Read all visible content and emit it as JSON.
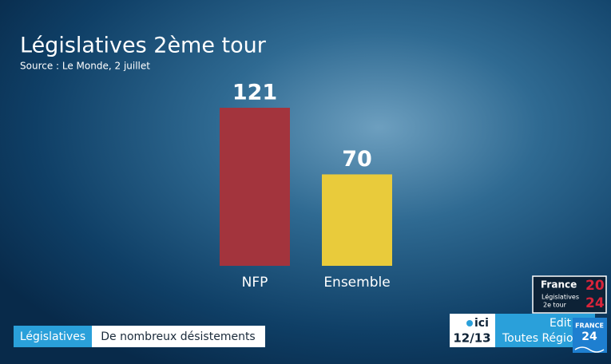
{
  "chart_data": {
    "type": "bar",
    "title": "Législatives 2ème tour",
    "subtitle": "Source : Le Monde, 2 juillet",
    "categories": [
      "NFP",
      "Ensemble"
    ],
    "values": [
      121,
      70
    ],
    "colors": [
      "#a3343d",
      "#e9cb3b"
    ]
  },
  "banner": {
    "tag": "Législatives",
    "headline": "De nombreux désistements"
  },
  "election_logo": {
    "brand": "France",
    "year_top": "20",
    "year_bottom": "24",
    "line1": "Législatives",
    "line2": "2e tour"
  },
  "channel": {
    "logo": "ici",
    "program": "12/13",
    "edition_line1": "Edit",
    "edition_line2": "Toutes Régio",
    "network": "FRANCE",
    "network_number": "24"
  }
}
